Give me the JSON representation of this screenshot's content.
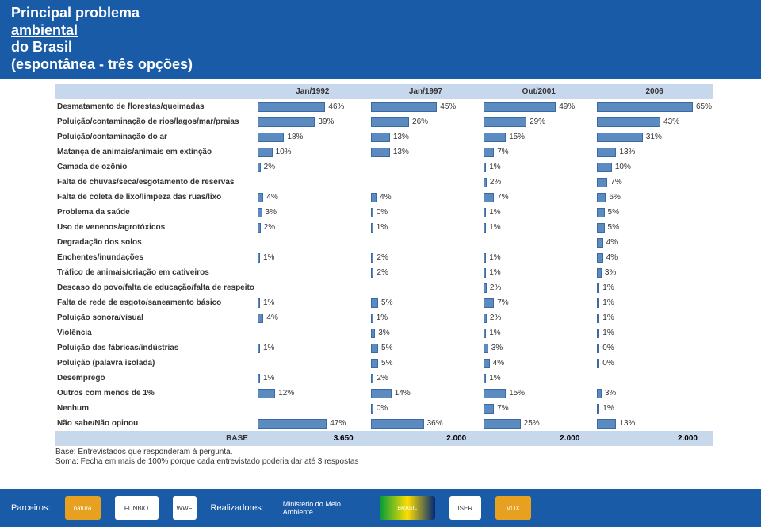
{
  "header": {
    "line1_a": "Principal problema ",
    "line1_b": "ambiental",
    "line1_c": " do Brasil",
    "line2": "(espontânea - três opções)"
  },
  "columns": [
    "Jan/1992",
    "Jan/1997",
    "Out/2001",
    "2006"
  ],
  "maxPct": 70,
  "rows": [
    {
      "label": "Desmatamento de florestas/queimadas",
      "v": [
        "46%",
        "45%",
        "49%",
        "65%"
      ]
    },
    {
      "label": "Poluição/contaminação de rios/lagos/mar/praias",
      "v": [
        "39%",
        "26%",
        "29%",
        "43%"
      ]
    },
    {
      "label": "Poluição/contaminação do ar",
      "v": [
        "18%",
        "13%",
        "15%",
        "31%"
      ]
    },
    {
      "label": "Matança de animais/animais em extinção",
      "v": [
        "10%",
        "13%",
        "7%",
        "13%"
      ]
    },
    {
      "label": "Camada de ozônio",
      "v": [
        "2%",
        "",
        "1%",
        "10%"
      ]
    },
    {
      "label": "Falta de chuvas/seca/esgotamento de reservas",
      "v": [
        "",
        "",
        "2%",
        "7%"
      ]
    },
    {
      "label": "Falta de coleta de lixo/limpeza das ruas/lixo",
      "v": [
        "4%",
        "4%",
        "7%",
        "6%"
      ]
    },
    {
      "label": "Problema da saúde",
      "v": [
        "3%",
        "0%",
        "1%",
        "5%"
      ]
    },
    {
      "label": "Uso de venenos/agrotóxicos",
      "v": [
        "2%",
        "1%",
        "1%",
        "5%"
      ]
    },
    {
      "label": "Degradação dos solos",
      "v": [
        "",
        "",
        "",
        "4%"
      ]
    },
    {
      "label": "Enchentes/inundações",
      "v": [
        "1%",
        "2%",
        "1%",
        "4%"
      ]
    },
    {
      "label": "Tráfico de animais/criação em cativeiros",
      "v": [
        "",
        "2%",
        "1%",
        "3%"
      ]
    },
    {
      "label": "Descaso do povo/falta de educação/falta de respeito",
      "v": [
        "",
        "",
        "2%",
        "1%"
      ]
    },
    {
      "label": "Falta de rede de esgoto/saneamento básico",
      "v": [
        "1%",
        "5%",
        "7%",
        "1%"
      ]
    },
    {
      "label": "Poluição sonora/visual",
      "v": [
        "4%",
        "1%",
        "2%",
        "1%"
      ]
    },
    {
      "label": "Violência",
      "v": [
        "",
        "3%",
        "1%",
        "1%"
      ]
    },
    {
      "label": "Poluição das fábricas/indústrias",
      "v": [
        "1%",
        "5%",
        "3%",
        "0%"
      ]
    },
    {
      "label": "Poluição (palavra isolada)",
      "v": [
        "",
        "5%",
        "4%",
        "0%"
      ]
    },
    {
      "label": "Desemprego",
      "v": [
        "1%",
        "2%",
        "1%",
        ""
      ]
    },
    {
      "label": "Outros com menos de 1%",
      "v": [
        "12%",
        "14%",
        "15%",
        "3%"
      ]
    },
    {
      "label": "Nenhum",
      "v": [
        "",
        "0%",
        "7%",
        "1%"
      ]
    },
    {
      "label": "Não sabe/Não opinou",
      "v": [
        "47%",
        "36%",
        "25%",
        "13%"
      ]
    }
  ],
  "base": {
    "label": "BASE",
    "v": [
      "3.650",
      "2.000",
      "2.000",
      "2.000"
    ]
  },
  "notes": {
    "l1": "Base: Entrevistados que responderam à pergunta.",
    "l2": "Soma: Fecha em mais de 100% porque cada entrevistado poderia dar até 3 respostas"
  },
  "footer": {
    "parceiros": "Parceiros:",
    "realizadores": "Realizadores:",
    "logos": {
      "natura": "natura",
      "funbio": "FUNBIO",
      "wwf": "WWF",
      "mma": "Ministério do Meio Ambiente",
      "gov": "BRASIL",
      "iser": "ISER",
      "vox": "VOX"
    }
  }
}
